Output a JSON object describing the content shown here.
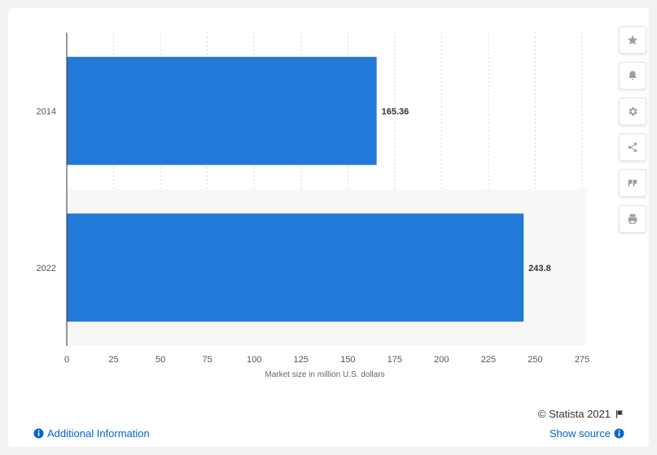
{
  "chart_data": {
    "type": "bar",
    "orientation": "horizontal",
    "categories": [
      "2014",
      "2022"
    ],
    "values": [
      165.36,
      243.8
    ],
    "value_labels": [
      "165.36",
      "243.8"
    ],
    "xlabel": "Market size in million U.S. dollars",
    "xlim": [
      0,
      275
    ],
    "xticks": [
      "0",
      "25",
      "50",
      "75",
      "100",
      "125",
      "150",
      "175",
      "200",
      "225",
      "250",
      "275"
    ],
    "grid": "vertical-dashed",
    "bar_color": "#2279d8"
  },
  "toolbar": {
    "buttons": [
      {
        "name": "favorite-button",
        "icon": "star-icon"
      },
      {
        "name": "notification-button",
        "icon": "bell-icon"
      },
      {
        "name": "settings-button",
        "icon": "gear-icon"
      },
      {
        "name": "share-button",
        "icon": "share-icon"
      },
      {
        "name": "cite-button",
        "icon": "quote-icon"
      },
      {
        "name": "print-button",
        "icon": "print-icon"
      }
    ]
  },
  "footer": {
    "credit": "© Statista 2021",
    "additional_info": "Additional Information",
    "show_source": "Show source"
  }
}
